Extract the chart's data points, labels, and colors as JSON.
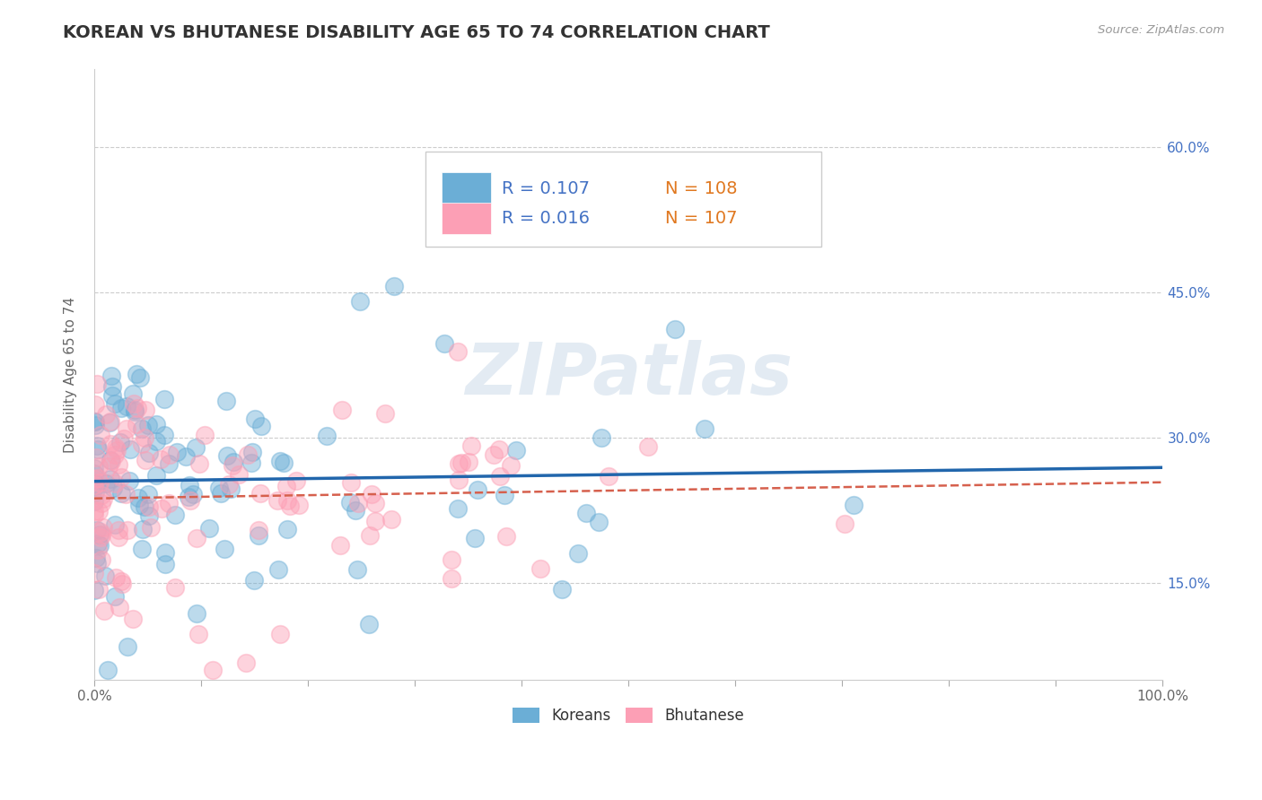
{
  "title": "KOREAN VS BHUTANESE DISABILITY AGE 65 TO 74 CORRELATION CHART",
  "source_text": "Source: ZipAtlas.com",
  "ylabel": "Disability Age 65 to 74",
  "xlim": [
    0.0,
    1.0
  ],
  "ylim": [
    0.05,
    0.68
  ],
  "ytick_positions": [
    0.15,
    0.3,
    0.45,
    0.6
  ],
  "ytick_labels": [
    "15.0%",
    "30.0%",
    "45.0%",
    "60.0%"
  ],
  "xtick_positions": [
    0.0,
    0.1,
    0.2,
    0.3,
    0.4,
    0.5,
    0.6,
    0.7,
    0.8,
    0.9,
    1.0
  ],
  "xtick_labels": [
    "0.0%",
    "",
    "",
    "",
    "",
    "",
    "",
    "",
    "",
    "",
    "100.0%"
  ],
  "grid_color": "#cccccc",
  "background_color": "#ffffff",
  "korean_color": "#6baed6",
  "bhutanese_color": "#fc9fb5",
  "korean_line_color": "#2166ac",
  "bhutanese_line_color": "#d6604d",
  "legend_R_korean": "R = 0.107",
  "legend_N_korean": "N = 108",
  "legend_R_bhutanese": "R = 0.016",
  "legend_N_bhutanese": "N = 107",
  "legend_text_color": "#4472c4",
  "legend_N_color": "#e07820",
  "watermark": "ZIPatlas",
  "koreans_label": "Koreans",
  "bhutanese_label": "Bhutanese",
  "title_fontsize": 14,
  "axis_label_fontsize": 11,
  "tick_fontsize": 11,
  "legend_fontsize": 14
}
